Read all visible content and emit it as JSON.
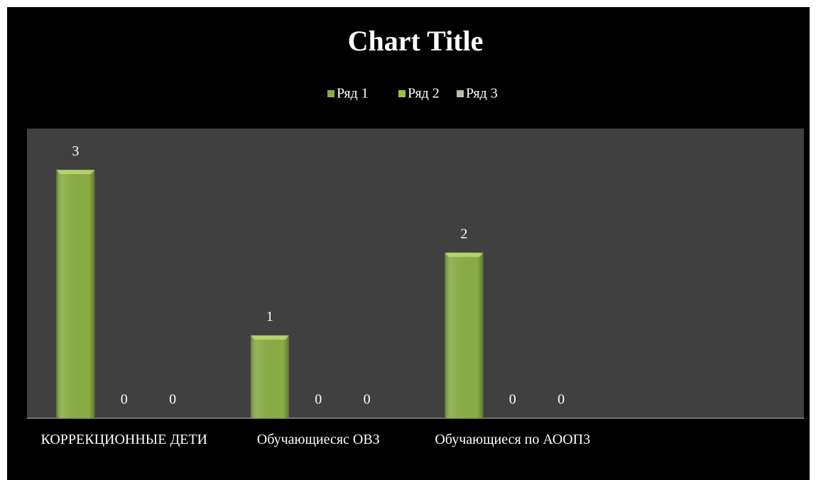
{
  "chart_data": {
    "type": "bar",
    "title": "Chart Title",
    "categories": [
      "КОРРЕКЦИОННЫЕ ДЕТИ",
      "Обучающиесяс ОВЗ",
      "Обучающиеся по АООП3",
      null
    ],
    "series": [
      {
        "name": "Ряд 1",
        "color": "#8aac45",
        "values": [
          3,
          1,
          2,
          null
        ]
      },
      {
        "name": "Ряд 2",
        "color": "#9cc23a",
        "values": [
          0,
          0,
          0,
          null
        ]
      },
      {
        "name": "Ряд 3",
        "color": "#b8bdb0",
        "values": [
          0,
          0,
          0,
          null
        ]
      }
    ],
    "ylim": [
      0,
      3.5
    ],
    "grid": false,
    "legend": "top"
  }
}
